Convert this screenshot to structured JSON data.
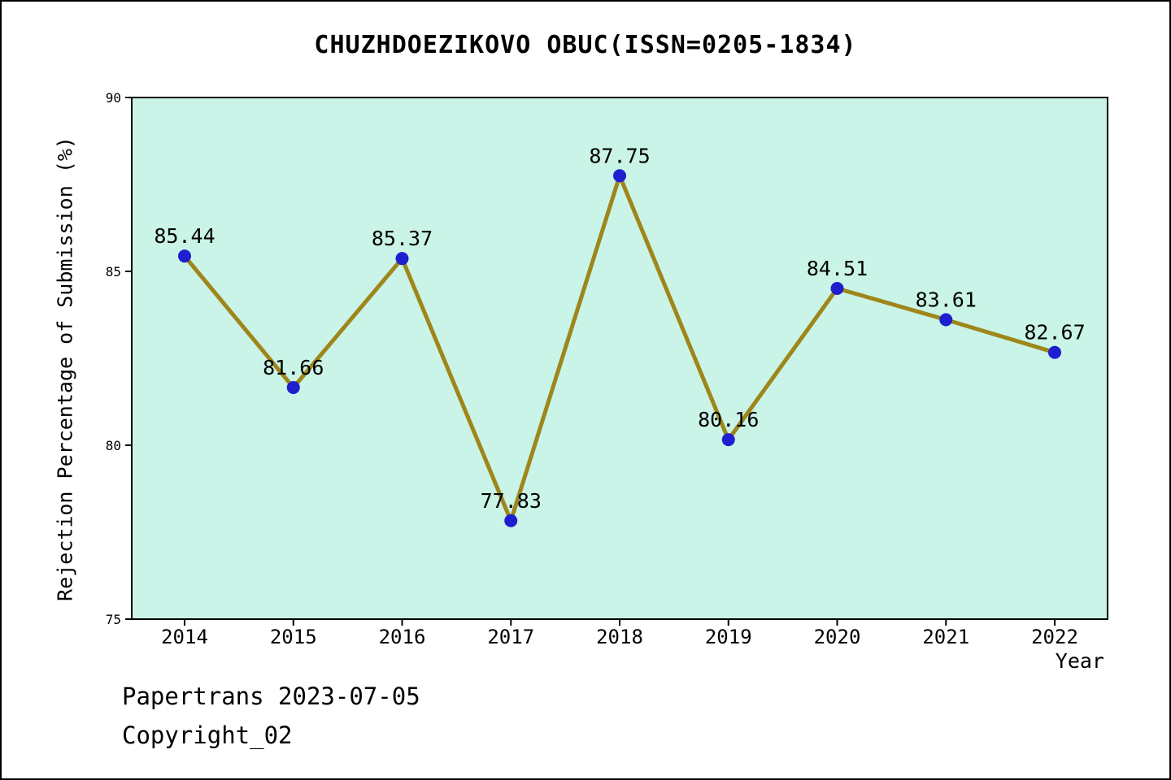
{
  "chart_data": {
    "type": "line",
    "title": "CHUZHDOEZIKOVO OBUC(ISSN=0205-1834)",
    "xlabel": "Year",
    "ylabel": "Rejection Percentage of Submission (%)",
    "x": [
      2014,
      2015,
      2016,
      2017,
      2018,
      2019,
      2020,
      2021,
      2022
    ],
    "values": [
      85.44,
      81.66,
      85.37,
      77.83,
      87.75,
      80.16,
      84.51,
      83.61,
      82.67
    ],
    "ylim": [
      75,
      90
    ],
    "yticks": [
      75,
      80,
      85,
      90
    ],
    "grid": false,
    "legend": "none",
    "colors": {
      "line": "#9e861a",
      "marker": "#1f1fd0",
      "plot_bg": "#c9f4e7",
      "axis": "#000000",
      "text": "#000000"
    }
  },
  "footer": {
    "line1": "Papertrans 2023-07-05",
    "line2": "Copyright_02"
  }
}
